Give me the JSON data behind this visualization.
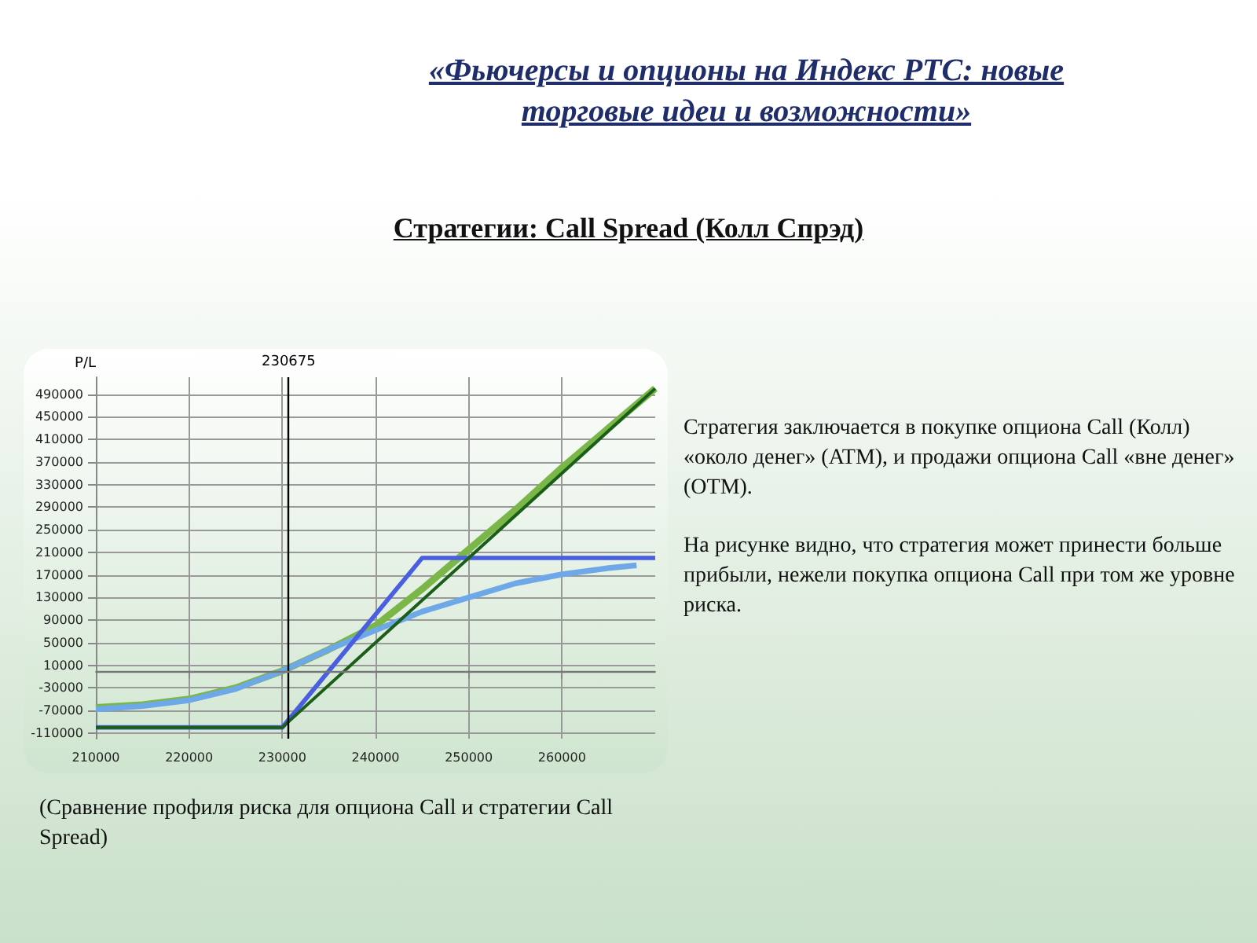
{
  "chart_data": {
    "type": "line",
    "title": "«Фьючерсы и опционы на Индекс РТС: новые торговые идеи и возможности»",
    "subtitle": "Стратегии: Call Spread (Колл Спрэд)",
    "ylabel": "P/L",
    "annotations": [
      "Стратегия заключается в покупке опциона Call (Колл) «около денег» (ATM), и продажи опциона Call «вне денег» (OTM).",
      "На рисунке видно, что стратегия может принести больше прибыли, нежели покупка опциона Call при том же уровне риска.",
      "(Сравнение профиля риска для опциона Call и стратегии Call Spread)"
    ],
    "series": [
      {
        "color": "#7ab648",
        "x": [
          210000,
          215000,
          220000,
          225000,
          230000,
          235000,
          240000,
          245000,
          250000,
          255000,
          260000,
          265000,
          270000
        ],
        "values": [
          -65000,
          -60000,
          -50000,
          -30000,
          0,
          38000,
          80000,
          145000,
          215000,
          285000,
          360000,
          430000,
          500000
        ]
      },
      {
        "color": "#6fa8e8",
        "x": [
          210000,
          215000,
          220000,
          225000,
          230000,
          235000,
          240000,
          245000,
          250000,
          255000,
          260000,
          265000,
          268000
        ],
        "values": [
          -68000,
          -62000,
          -52000,
          -32000,
          0,
          38000,
          72000,
          105000,
          130000,
          155000,
          171000,
          182000,
          187000
        ]
      },
      {
        "color": "#4a5fe0",
        "x": [
          210000,
          230000,
          245000,
          270000
        ],
        "values": [
          -100000,
          -100000,
          200000,
          200000
        ]
      },
      {
        "color": "#1a5e1a",
        "x": [
          210000,
          230000,
          270000
        ],
        "values": [
          -100000,
          -100000,
          500000
        ]
      }
    ],
    "xlim": [
      210000,
      270000
    ],
    "xticks": [
      210000,
      220000,
      230000,
      240000,
      250000,
      260000
    ],
    "ylim": [
      -120000,
      520000
    ],
    "yticks": [
      -110000,
      -70000,
      -30000,
      10000,
      50000,
      90000,
      130000,
      170000,
      210000,
      250000,
      290000,
      330000,
      370000,
      410000,
      450000,
      490000
    ],
    "ref_lines": [
      {
        "axis": "x",
        "value": 230675,
        "label": "230675",
        "color": "#000000"
      },
      {
        "axis": "y",
        "value": 0,
        "label": null,
        "color": "#777777"
      }
    ],
    "grid": true,
    "marker": "none",
    "line_style": "solid"
  }
}
